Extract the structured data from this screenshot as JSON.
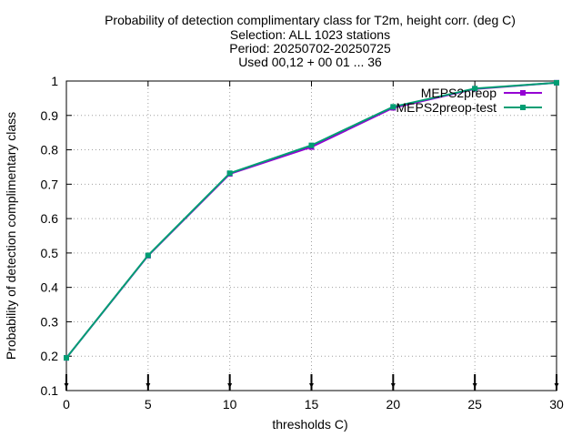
{
  "chart_data": {
    "type": "line",
    "title_lines": [
      "Probability of detection complimentary class  for T2m, height corr. (deg C)",
      "Selection: ALL   1023 stations",
      "Period: 20250702-20250725",
      "Used 00,12 + 00 01 ... 36"
    ],
    "xlabel": "thresholds C)",
    "ylabel": "Probability of detection complimentary class",
    "xlim": [
      0,
      30
    ],
    "ylim": [
      0.1,
      1.0
    ],
    "xticks": [
      0,
      5,
      10,
      15,
      20,
      25,
      30
    ],
    "yticks": [
      0.1,
      0.2,
      0.3,
      0.4,
      0.5,
      0.6,
      0.7,
      0.8,
      0.9,
      1.0
    ],
    "ytick_labels": [
      "0.1",
      "0.2",
      "0.3",
      "0.4",
      "0.5",
      "0.6",
      "0.7",
      "0.8",
      "0.9",
      "1"
    ],
    "grid": true,
    "legend_position": "top-right",
    "count_marker_x": [
      0,
      5,
      10,
      15,
      20,
      25,
      30
    ],
    "series": [
      {
        "name": "MEPS2preop",
        "color": "#9400d3",
        "x": [
          0,
          5,
          10,
          15,
          20,
          25,
          30
        ],
        "y": [
          0.195,
          0.492,
          0.73,
          0.808,
          0.922,
          0.977,
          0.995
        ]
      },
      {
        "name": "MEPS2preop-test",
        "color": "#009e73",
        "x": [
          0,
          5,
          10,
          15,
          20,
          25,
          30
        ],
        "y": [
          0.195,
          0.493,
          0.732,
          0.813,
          0.925,
          0.978,
          0.995
        ]
      }
    ]
  }
}
